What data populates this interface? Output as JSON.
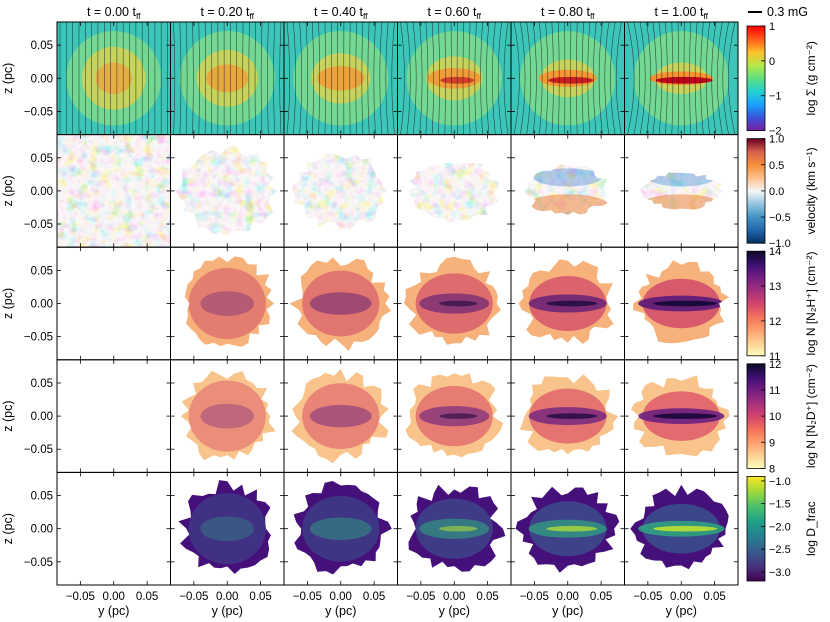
{
  "chart_data": {
    "type": "heatmap",
    "time_unit": "t",
    "time_sub": "ff",
    "times": [
      "0.00",
      "0.20",
      "0.40",
      "0.60",
      "0.80",
      "1.00"
    ],
    "xlabel_main": "y (pc)",
    "ylabel_main": "z (pc)",
    "x_ticks": [
      "−0.05",
      "0.00",
      "0.05"
    ],
    "y_ticks": [
      "0.05",
      "0.00",
      "−0.05"
    ],
    "xlim": [
      -0.085,
      0.085
    ],
    "ylim": [
      -0.085,
      0.085
    ],
    "field_legend": "0.3 mG",
    "rows": [
      {
        "quantity": "surface_density",
        "label": "log Σ (g cm⁻²)",
        "colormap": "jet",
        "range": [
          -2,
          1
        ],
        "ticks": [
          "1",
          "0",
          "−1",
          "−2"
        ],
        "tick_values": [
          1,
          0,
          -1,
          -2
        ],
        "empty": [
          false,
          false,
          false,
          false,
          false,
          false
        ],
        "field_lines": true
      },
      {
        "quantity": "velocity",
        "label": "velocity (km s⁻¹)",
        "colormap": "RdBu_r",
        "range": [
          -1.0,
          1.0
        ],
        "ticks": [
          "1.0",
          "0.5",
          "0.0",
          "−0.5",
          "−1.0"
        ],
        "tick_values": [
          1.0,
          0.5,
          0.0,
          -0.5,
          -1.0
        ],
        "empty": [
          false,
          false,
          false,
          false,
          false,
          false
        ],
        "field_lines": false
      },
      {
        "quantity": "N2H+ column density",
        "label": "log N [N₂H⁺] (cm⁻²)",
        "colormap": "magma_r",
        "range": [
          11,
          14
        ],
        "ticks": [
          "14",
          "13",
          "12",
          "11"
        ],
        "tick_values": [
          14,
          13,
          12,
          11
        ],
        "empty": [
          true,
          false,
          false,
          false,
          false,
          false
        ],
        "field_lines": false
      },
      {
        "quantity": "N2D+ column density",
        "label": "log N [N₂D⁺] (cm⁻²)",
        "colormap": "magma_r",
        "range": [
          8,
          12
        ],
        "ticks": [
          "12",
          "11",
          "10",
          "9",
          "8"
        ],
        "tick_values": [
          12,
          11,
          10,
          9,
          8
        ],
        "empty": [
          true,
          false,
          false,
          false,
          false,
          false
        ],
        "field_lines": false
      },
      {
        "quantity": "deuterium fraction",
        "label": "log D_frac",
        "colormap": "viridis",
        "range": [
          -3.2,
          -0.9
        ],
        "ticks": [
          "−1.0",
          "−1.5",
          "−2.0",
          "−2.5",
          "−3.0"
        ],
        "tick_values": [
          -1.0,
          -1.5,
          -2.0,
          -2.5,
          -3.0
        ],
        "empty": [
          true,
          false,
          false,
          false,
          false,
          false
        ],
        "field_lines": false
      }
    ]
  }
}
